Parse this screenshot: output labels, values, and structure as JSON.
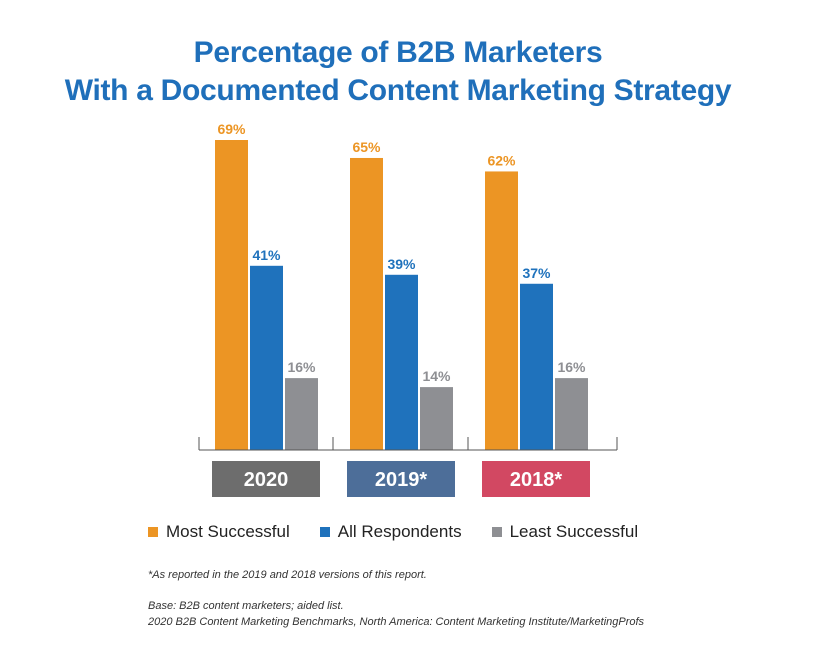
{
  "title_line1": "Percentage of B2B Marketers",
  "title_line2": "With a Documented Content Marketing Strategy",
  "colors": {
    "most_successful": "#ec9524",
    "all_respondents": "#1f72bc",
    "least_successful": "#8e8f93",
    "label_2020": "#6d6d6d",
    "label_2019": "#4d6e99",
    "label_2018": "#d24862",
    "title": "#1f6fba"
  },
  "chart_data": {
    "type": "bar",
    "categories": [
      "2020",
      "2019*",
      "2018*"
    ],
    "series": [
      {
        "name": "Most Successful",
        "values": [
          69,
          65,
          62
        ],
        "labels": [
          "69%",
          "65%",
          "62%"
        ]
      },
      {
        "name": "All Respondents",
        "values": [
          41,
          39,
          37
        ],
        "labels": [
          "41%",
          "39%",
          "37%"
        ]
      },
      {
        "name": "Least Successful",
        "values": [
          16,
          14,
          16
        ],
        "labels": [
          "16%",
          "14%",
          "16%"
        ]
      }
    ],
    "ylim": [
      0,
      100
    ],
    "grid": false,
    "legend": "bottom"
  },
  "legend": {
    "item1": "Most Successful",
    "item2": "All Respondents",
    "item3": "Least Successful"
  },
  "footnote": "*As reported in the 2019 and 2018 versions of this report.",
  "base_note": "Base: B2B content marketers; aided list.",
  "source_note": "2020 B2B Content Marketing Benchmarks, North America: Content Marketing Institute/MarketingProfs"
}
